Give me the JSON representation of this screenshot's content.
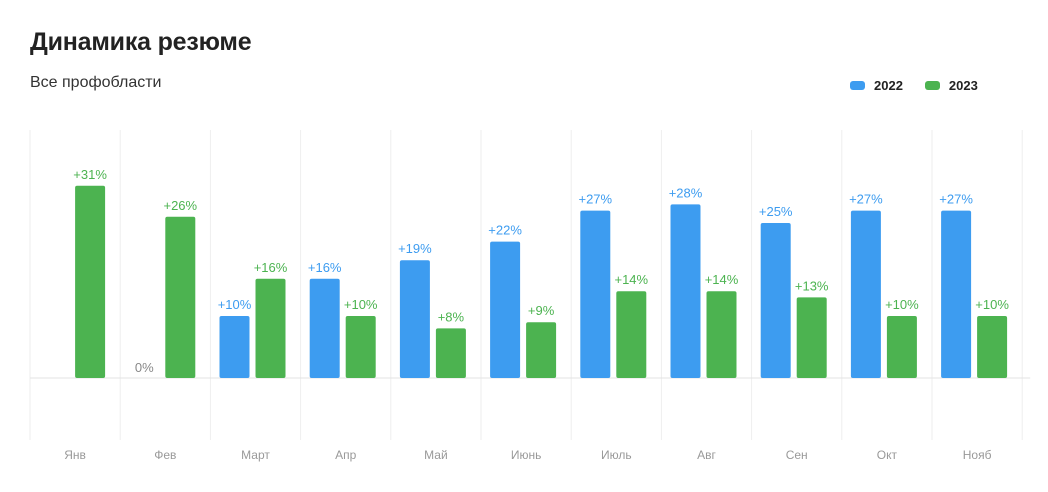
{
  "title": "Динамика резюме",
  "subtitle": "Все профобласти",
  "colors": {
    "2022": "#3d9cf0",
    "2023": "#4cb350"
  },
  "chart_data": {
    "type": "bar",
    "categories": [
      "Янв",
      "Фев",
      "Март",
      "Апр",
      "Май",
      "Июнь",
      "Июль",
      "Авг",
      "Сен",
      "Окт",
      "Нояб"
    ],
    "series": [
      {
        "name": "2022",
        "values": [
          null,
          0,
          10,
          16,
          19,
          22,
          27,
          28,
          25,
          27,
          27
        ],
        "labels": [
          "",
          "0%",
          "+10%",
          "+16%",
          "+19%",
          "+22%",
          "+27%",
          "+28%",
          "+25%",
          "+27%",
          "+27%"
        ]
      },
      {
        "name": "2023",
        "values": [
          31,
          26,
          16,
          10,
          8,
          9,
          14,
          14,
          13,
          10,
          10
        ],
        "labels": [
          "+31%",
          "+26%",
          "+16%",
          "+10%",
          "+8%",
          "+9%",
          "+14%",
          "+14%",
          "+13%",
          "+10%",
          "+10%"
        ]
      }
    ],
    "ylim": [
      -10,
      40
    ],
    "grid": true,
    "legend": "top-right"
  }
}
